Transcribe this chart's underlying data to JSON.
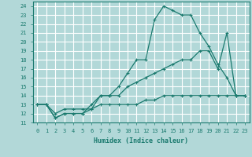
{
  "xlabel": "Humidex (Indice chaleur)",
  "ylabel": "",
  "xlim": [
    -0.5,
    23.5
  ],
  "ylim": [
    11,
    24.5
  ],
  "xticks": [
    0,
    1,
    2,
    3,
    4,
    5,
    6,
    7,
    8,
    9,
    10,
    11,
    12,
    13,
    14,
    15,
    16,
    17,
    18,
    19,
    20,
    21,
    22,
    23
  ],
  "yticks": [
    11,
    12,
    13,
    14,
    15,
    16,
    17,
    18,
    19,
    20,
    21,
    22,
    23,
    24
  ],
  "background_color": "#b2d8d8",
  "grid_color": "#ffffff",
  "line_color": "#1a7a6e",
  "series": [
    {
      "x": [
        0,
        1,
        2,
        3,
        4,
        5,
        6,
        7,
        8,
        9,
        10,
        11,
        12,
        13,
        14,
        15,
        16,
        17,
        18,
        19,
        20,
        21,
        22,
        23
      ],
      "y": [
        13,
        13,
        11.5,
        12,
        12,
        12,
        13,
        14,
        14,
        15,
        16.5,
        18,
        18,
        22.5,
        24,
        23.5,
        23,
        23,
        21,
        19.5,
        17.5,
        16,
        14,
        14
      ]
    },
    {
      "x": [
        0,
        1,
        2,
        3,
        4,
        5,
        6,
        7,
        8,
        9,
        10,
        11,
        12,
        13,
        14,
        15,
        16,
        17,
        18,
        19,
        20,
        21,
        22,
        23
      ],
      "y": [
        13,
        13,
        11.5,
        12,
        12,
        12,
        12.5,
        14,
        14,
        14,
        15,
        15.5,
        16,
        16.5,
        17,
        17.5,
        18,
        18,
        19,
        19,
        17,
        21,
        14,
        14
      ]
    },
    {
      "x": [
        0,
        1,
        2,
        3,
        4,
        5,
        6,
        7,
        8,
        9,
        10,
        11,
        12,
        13,
        14,
        15,
        16,
        17,
        18,
        19,
        20,
        21,
        22,
        23
      ],
      "y": [
        13,
        13,
        12,
        12.5,
        12.5,
        12.5,
        12.5,
        13,
        13,
        13,
        13,
        13,
        13.5,
        13.5,
        14,
        14,
        14,
        14,
        14,
        14,
        14,
        14,
        14,
        14
      ]
    }
  ]
}
